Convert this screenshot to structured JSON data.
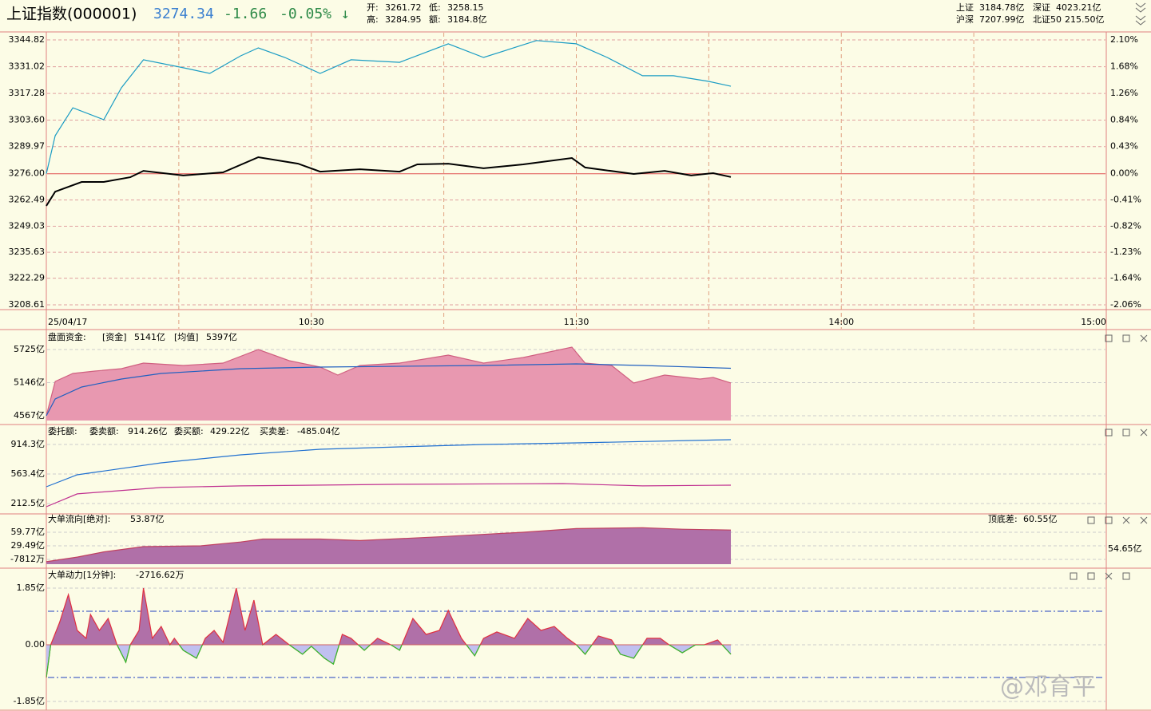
{
  "header": {
    "title": "上证指数(000001)",
    "price": "3274.34",
    "change": "-1.66",
    "change_pct": "-0.05%",
    "arrow": "↓",
    "stats": [
      {
        "label": "开:",
        "value": "3261.72"
      },
      {
        "label": "低:",
        "value": "3258.15"
      },
      {
        "label": "高:",
        "value": "3284.95"
      },
      {
        "label": "额:",
        "value": "3184.8亿"
      }
    ],
    "markets": [
      {
        "label": "上证",
        "value": "3184.78亿"
      },
      {
        "label": "深证",
        "value": "4023.21亿"
      },
      {
        "label": "沪深",
        "value": "7207.99亿"
      },
      {
        "label": "北证50",
        "value": "215.50亿"
      }
    ]
  },
  "time_axis": {
    "xlim": [
      0,
      240
    ],
    "grid": [
      30,
      60,
      90,
      120,
      150,
      180,
      210
    ],
    "ticks": [
      {
        "value": 0,
        "label": "25/04/17"
      },
      {
        "value": 60,
        "label": "10:30"
      },
      {
        "value": 120,
        "label": "11:30"
      },
      {
        "value": 180,
        "label": "14:00"
      },
      {
        "value": 240,
        "label": "15:00"
      }
    ]
  },
  "panels": [
    {
      "yticks": [
        3344.82,
        3331.02,
        3317.28,
        {
          "value": 3303.6,
          "label": "3303.60"
        },
        3289.97,
        {
          "value": 3276,
          "label": "3276.00"
        },
        3262.49,
        3249.03,
        3235.63,
        3222.29,
        3208.61
      ],
      "right_labels": [
        "2.10%",
        "1.68%",
        "1.26%",
        "0.84%",
        "0.43%",
        "0.00%",
        "-0.41%",
        "-0.82%",
        "-1.23%",
        "-1.64%",
        "-2.06%"
      ],
      "series": [
        {
          "style": "line",
          "color": "#000000",
          "x": [
            0,
            2,
            8,
            13,
            19,
            22,
            31,
            40,
            48,
            57,
            62,
            71,
            80,
            84,
            91,
            99,
            108,
            119,
            122,
            133,
            140,
            146,
            151,
            155
          ],
          "values": [
            3259.5,
            3266.8,
            3271.8,
            3271.8,
            3274.2,
            3277.5,
            3275.1,
            3276.7,
            3284.5,
            3281.2,
            3277.1,
            3278.3,
            3277.1,
            3280.8,
            3281.2,
            3278.8,
            3280.8,
            3284.1,
            3279.2,
            3275.9,
            3277.5,
            3275.1,
            3276.3,
            3274.34
          ]
        },
        {
          "style": "line",
          "color": "#1a9cc4",
          "x": [
            0,
            2,
            6,
            13,
            17,
            22,
            31,
            37,
            44,
            48,
            54,
            62,
            69,
            80,
            91,
            99,
            111,
            120,
            127,
            135,
            142,
            150,
            155
          ],
          "values": [
            3276.0,
            3295.6,
            3309.9,
            3303.8,
            3320.2,
            3334.6,
            3330.5,
            3327.6,
            3336.6,
            3340.7,
            3335.8,
            3327.6,
            3334.6,
            3333.3,
            3342.8,
            3335.8,
            3344.5,
            3342.8,
            3335.8,
            3326.4,
            3326.4,
            3323.5,
            3321.0
          ]
        }
      ]
    },
    {
      "header": [
        {
          "text": "盘面资金:",
          "color": "#000000"
        },
        {
          "text": "[资金]",
          "color": "#c03060"
        },
        {
          "text": "5141亿",
          "color": "#000000"
        },
        {
          "text": "[均值]",
          "color": "#2060c0"
        },
        {
          "text": "5397亿",
          "color": "#000000"
        }
      ],
      "yticks": [
        {
          "value": 5725,
          "label": "5725亿"
        },
        {
          "value": 5146,
          "label": "5146亿"
        },
        {
          "value": 4567,
          "label": "4567亿"
        }
      ],
      "series": [
        {
          "style": "area",
          "color": "#d06080",
          "fill": "#e898b0",
          "x": [
            0,
            2,
            6,
            11,
            17,
            22,
            31,
            40,
            48,
            55,
            62,
            66,
            71,
            80,
            91,
            99,
            108,
            119,
            122,
            128,
            133,
            140,
            148,
            151,
            155
          ],
          "values": [
            4567,
            5167,
            5306,
            5348,
            5390,
            5488,
            5446,
            5488,
            5725,
            5530,
            5418,
            5279,
            5446,
            5488,
            5627,
            5488,
            5585,
            5767,
            5488,
            5446,
            5139,
            5279,
            5209,
            5237,
            5141
          ]
        },
        {
          "style": "line",
          "color": "#2060c0",
          "x": [
            0,
            2,
            8,
            17,
            26,
            44,
            62,
            99,
            120,
            135,
            155
          ],
          "values": [
            4567,
            4860,
            5069,
            5209,
            5306,
            5390,
            5418,
            5446,
            5474,
            5446,
            5397
          ]
        }
      ]
    },
    {
      "header": [
        {
          "text": "委托额:",
          "color": "#2060c0"
        },
        {
          "text": "委卖额:",
          "color": "#000000"
        },
        {
          "text": "914.26亿",
          "color": "#2060c0"
        },
        {
          "text": "委买额:",
          "color": "#000000"
        },
        {
          "text": "429.22亿",
          "color": "#a020a0"
        },
        {
          "text": "买卖差:",
          "color": "#000000"
        },
        {
          "text": "-485.04亿",
          "color": "#000000"
        }
      ],
      "yticks": [
        {
          "value": 914.3,
          "label": "914.3亿"
        },
        {
          "value": 563.4,
          "label": "563.4亿"
        },
        {
          "value": 212.5,
          "label": "212.5亿"
        }
      ],
      "series": [
        {
          "style": "line",
          "color": "#2070d0",
          "x": [
            0,
            7,
            26,
            44,
            62,
            80,
            99,
            120,
            155
          ],
          "values": [
            411.7,
            554,
            696,
            791,
            857,
            886,
            914,
            933,
            971
          ]
        },
        {
          "style": "line",
          "color": "#c03090",
          "x": [
            0,
            7,
            26,
            44,
            80,
            117,
            135,
            155
          ],
          "values": [
            175,
            327,
            403,
            422,
            441,
            450,
            422,
            431
          ]
        }
      ]
    },
    {
      "header": [
        {
          "text": "大单流向[绝对]:",
          "color": "#000000"
        },
        {
          "text": "53.87亿",
          "color": "#000000"
        },
        {
          "text": "顶底差:",
          "color": "#000000"
        },
        {
          "text": "60.55亿",
          "color": "#d02020"
        }
      ],
      "right_value": "54.65亿",
      "yticks": [
        {
          "value": 59.77,
          "label": "59.77亿"
        },
        {
          "value": 29.49,
          "label": "29.49亿"
        },
        {
          "value": -0.7812,
          "label": "-7812万"
        }
      ],
      "series": [
        {
          "style": "area",
          "color": "#c04060",
          "fill": "#b070a8",
          "x": [
            0,
            7,
            13,
            22,
            35,
            44,
            49,
            62,
            71,
            89,
            108,
            120,
            135,
            144,
            155
          ],
          "values": [
            -6,
            4.3,
            16,
            27.8,
            29.5,
            38,
            44.6,
            44.6,
            41.3,
            49.7,
            59.8,
            68,
            69.9,
            66.5,
            64.8
          ]
        }
      ]
    },
    {
      "header": [
        {
          "text": "大单动力[1分钟]:",
          "color": "#000000"
        },
        {
          "text": "-2716.62万",
          "color": "#000000"
        }
      ],
      "yticks": [
        {
          "value": 1.85,
          "label": "1.85亿"
        },
        {
          "value": 0,
          "label": "0.00"
        },
        {
          "value": -1.85,
          "label": "-1.85亿"
        }
      ],
      "series": [
        {
          "style": "signed",
          "color": "#e03040",
          "fill": "#b070a8",
          "neg_color": "#30c030",
          "neg_fill": "#c0c0f0",
          "x": [
            0,
            1,
            3,
            5,
            7,
            9,
            10,
            12,
            14,
            16,
            18,
            19,
            21,
            22,
            24,
            26,
            28,
            29,
            31,
            34,
            36,
            38,
            40,
            43,
            45,
            47,
            49,
            52,
            55,
            58,
            60,
            63,
            65,
            67,
            69,
            72,
            75,
            78,
            80,
            83,
            86,
            89,
            91,
            94,
            97,
            99,
            102,
            106,
            109,
            112,
            115,
            118,
            120,
            122,
            125,
            128,
            130,
            133,
            136,
            139,
            141,
            144,
            147,
            149,
            152,
            155
          ],
          "values": [
            -1.07,
            0,
            0.73,
            1.64,
            0.47,
            0.21,
            0.99,
            0.47,
            0.86,
            0,
            -0.57,
            0,
            0.47,
            1.85,
            0.21,
            0.6,
            0,
            0.21,
            -0.18,
            -0.44,
            0.21,
            0.47,
            0.08,
            1.85,
            0.47,
            1.46,
            0,
            0.34,
            0,
            -0.31,
            -0.05,
            -0.44,
            -0.63,
            0.34,
            0.21,
            -0.18,
            0.21,
            0,
            -0.18,
            0.86,
            0.34,
            0.47,
            1.12,
            0.21,
            -0.36,
            0.21,
            0.42,
            0.21,
            0.86,
            0.47,
            0.6,
            0.21,
            0,
            -0.31,
            0.29,
            0.16,
            -0.31,
            -0.44,
            0.21,
            0.21,
            0,
            -0.26,
            0,
            0,
            0.16,
            -0.31
          ]
        }
      ]
    }
  ],
  "watermark": "@邓育平"
}
